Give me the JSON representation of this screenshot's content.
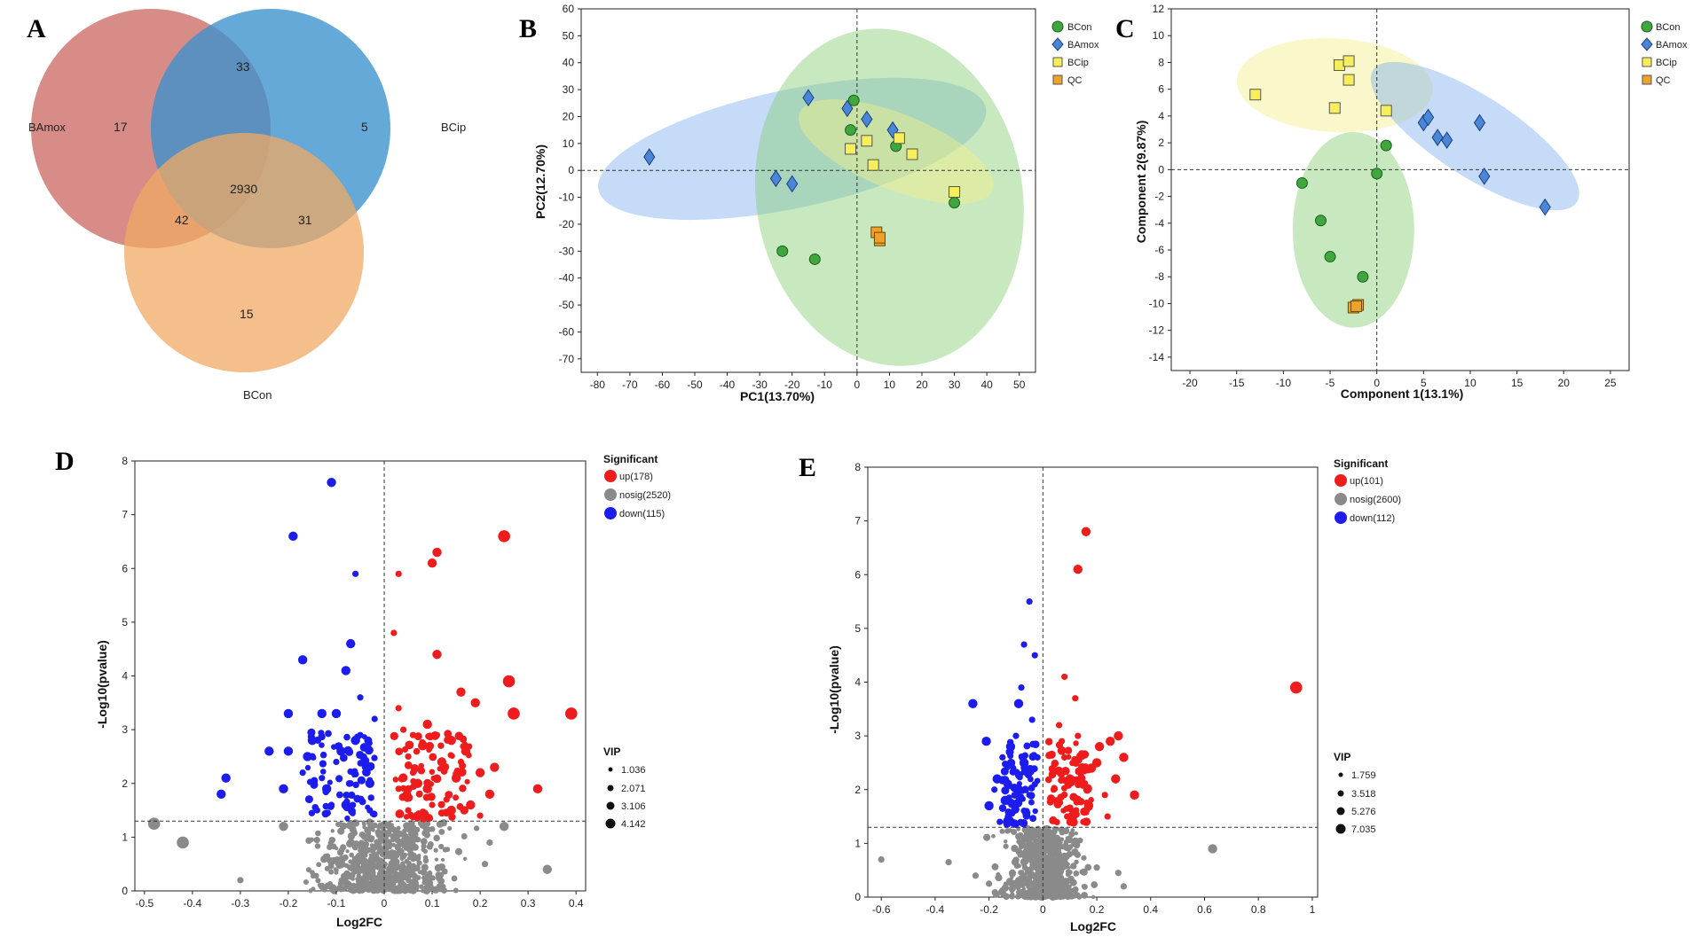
{
  "panels": {
    "A": "A",
    "B": "B",
    "C": "C",
    "D": "D",
    "E": "E"
  },
  "colors": {
    "bamox": "#cd6b65",
    "bcip": "#4a9bd2",
    "bcon": "#f0a964",
    "green": "#3ea83e",
    "blue_marker": "#4a86d8",
    "yellow_marker": "#f7ee5c",
    "orange_marker": "#f0a12c",
    "up": "#ee1c1c",
    "nosig": "#8a8a8a",
    "down": "#1c1cee"
  },
  "chart_data": [
    {
      "type": "venn",
      "sets": [
        "BAmox",
        "BCip",
        "BCon"
      ],
      "regions": {
        "BAmox_only": 17,
        "BCip_only": 5,
        "BCon_only": 15,
        "BAmox_BCip": 33,
        "BAmox_BCon": 42,
        "BCip_BCon": 31,
        "all": 2930
      }
    },
    {
      "type": "scatter",
      "xlabel": "PC1(13.70%)",
      "ylabel": "PC2(12.70%)",
      "xlim": [
        -85,
        55
      ],
      "ylim": [
        -75,
        60
      ],
      "xticks": [
        -80,
        -70,
        -60,
        -50,
        -40,
        -30,
        -20,
        -10,
        0,
        10,
        20,
        30,
        40,
        50
      ],
      "yticks": [
        60,
        50,
        40,
        30,
        20,
        10,
        0,
        -10,
        -20,
        -30,
        -40,
        -50,
        -60,
        -70
      ],
      "legend": [
        "BCon",
        "BAmox",
        "BCip",
        "QC"
      ],
      "series": [
        {
          "name": "BCon",
          "marker": "circle",
          "points": [
            [
              -1,
              26
            ],
            [
              -2,
              15
            ],
            [
              12,
              9
            ],
            [
              -23,
              -30
            ],
            [
              -13,
              -33
            ],
            [
              30,
              -12
            ]
          ]
        },
        {
          "name": "BAmox",
          "marker": "diamond",
          "points": [
            [
              -64,
              5
            ],
            [
              -15,
              27
            ],
            [
              -3,
              23
            ],
            [
              3,
              19
            ],
            [
              11,
              15
            ],
            [
              -25,
              -3
            ],
            [
              -20,
              -5
            ]
          ]
        },
        {
          "name": "BCip",
          "marker": "square",
          "points": [
            [
              -2,
              8
            ],
            [
              3,
              11
            ],
            [
              13,
              12
            ],
            [
              17,
              6
            ],
            [
              5,
              2
            ],
            [
              30,
              -8
            ]
          ]
        },
        {
          "name": "QC",
          "marker": "square",
          "points": [
            [
              6,
              -23
            ],
            [
              7,
              -26
            ],
            [
              7,
              -25
            ]
          ]
        }
      ],
      "ellipses": [
        {
          "group": "BAmox",
          "cx": -20,
          "cy": 8,
          "rx": 61,
          "ry": 22,
          "angle_deg": 12
        },
        {
          "group": "BCon",
          "cx": 10,
          "cy": -10,
          "rx": 41,
          "ry": 63,
          "angle_deg": 10
        },
        {
          "group": "BCip",
          "cx": 12,
          "cy": 7,
          "rx": 32,
          "ry": 14,
          "angle_deg": -22
        }
      ]
    },
    {
      "type": "scatter",
      "xlabel": "Component 1(13.1%)",
      "ylabel": "Component 2(9.87%)",
      "xlim": [
        -22,
        27
      ],
      "ylim": [
        -15,
        12
      ],
      "xticks": [
        -20,
        -15,
        -10,
        -5,
        0,
        5,
        10,
        15,
        20,
        25
      ],
      "yticks": [
        12,
        10,
        8,
        6,
        4,
        2,
        0,
        -2,
        -4,
        -6,
        -8,
        -10,
        -12,
        -14
      ],
      "legend": [
        "BCon",
        "BAmox",
        "BCip",
        "QC"
      ],
      "series": [
        {
          "name": "BCon",
          "marker": "circle",
          "points": [
            [
              -8,
              -1
            ],
            [
              -6,
              -3.8
            ],
            [
              -5,
              -6.5
            ],
            [
              -1.5,
              -8
            ],
            [
              1,
              1.8
            ],
            [
              0,
              -0.3
            ]
          ]
        },
        {
          "name": "BAmox",
          "marker": "diamond",
          "points": [
            [
              5,
              3.5
            ],
            [
              5.5,
              3.9
            ],
            [
              6.5,
              2.4
            ],
            [
              7.5,
              2.2
            ],
            [
              11,
              3.5
            ],
            [
              11.5,
              -0.5
            ],
            [
              18,
              -2.8
            ]
          ]
        },
        {
          "name": "BCip",
          "marker": "square",
          "points": [
            [
              -13,
              5.6
            ],
            [
              -4,
              7.8
            ],
            [
              -3,
              8.1
            ],
            [
              -3,
              6.7
            ],
            [
              -4.5,
              4.6
            ],
            [
              1,
              4.4
            ]
          ]
        },
        {
          "name": "QC",
          "marker": "square",
          "points": [
            [
              -2.5,
              -10.3
            ],
            [
              -2,
              -10.1
            ],
            [
              -2.2,
              -10.2
            ]
          ]
        }
      ],
      "ellipses": [
        {
          "group": "BCip",
          "cx": -4.5,
          "cy": 6.3,
          "rx": 10.5,
          "ry": 3.5,
          "angle_deg": -3
        },
        {
          "group": "BCon",
          "cx": -2.5,
          "cy": -4.5,
          "rx": 6.5,
          "ry": 7.3,
          "angle_deg": 0
        },
        {
          "group": "BAmox",
          "cx": 10.5,
          "cy": 2.5,
          "rx": 13,
          "ry": 3,
          "angle_deg": -33
        }
      ]
    },
    {
      "type": "scatter",
      "subtype": "volcano",
      "xlabel": "Log2FC",
      "ylabel": "-Log10(pvalue)",
      "xlim": [
        -0.52,
        0.42
      ],
      "ylim": [
        0,
        8
      ],
      "xticks": [
        -0.5,
        -0.4,
        -0.3,
        -0.2,
        -0.1,
        0,
        0.1,
        0.2,
        0.3,
        0.4
      ],
      "yticks": [
        0,
        1,
        2,
        3,
        4,
        5,
        6,
        7,
        8
      ],
      "threshold_y": 1.3,
      "legend_title": "Significant",
      "legend": [
        "up(178)",
        "nosig(2520)",
        "down(115)"
      ],
      "vip_title": "VIP",
      "vip_levels": [
        "1.036",
        "2.071",
        "3.106",
        "4.142"
      ],
      "up_points": [
        [
          0.25,
          6.6,
          3
        ],
        [
          0.11,
          6.3,
          2
        ],
        [
          0.1,
          6.1,
          2
        ],
        [
          0.03,
          5.9,
          1
        ],
        [
          0.11,
          4.4,
          2
        ],
        [
          0.02,
          4.8,
          1
        ],
        [
          0.26,
          3.9,
          3
        ],
        [
          0.16,
          3.7,
          2
        ],
        [
          0.39,
          3.3,
          3
        ],
        [
          0.27,
          3.3,
          3
        ],
        [
          0.19,
          3.5,
          2
        ],
        [
          0.32,
          1.9,
          2
        ],
        [
          0.22,
          1.8,
          2
        ],
        [
          0.2,
          2.2,
          2
        ],
        [
          0.09,
          3.1,
          2
        ],
        [
          0.14,
          2.8,
          2
        ],
        [
          0.05,
          2.5,
          1
        ],
        [
          0.07,
          2.0,
          2
        ],
        [
          0.12,
          2.4,
          2
        ],
        [
          0.17,
          2.6,
          2
        ],
        [
          0.04,
          3.0,
          1
        ],
        [
          0.06,
          2.9,
          1
        ],
        [
          0.15,
          2.1,
          2
        ],
        [
          0.1,
          1.6,
          1
        ],
        [
          0.18,
          1.6,
          2
        ],
        [
          0.08,
          2.7,
          2
        ],
        [
          0.03,
          1.9,
          1
        ],
        [
          0.05,
          1.5,
          1
        ],
        [
          0.13,
          1.7,
          1
        ],
        [
          0.09,
          1.9,
          2
        ],
        [
          0.11,
          2.9,
          1
        ],
        [
          0.03,
          3.4,
          1
        ],
        [
          0.23,
          2.3,
          2
        ],
        [
          0.14,
          1.5,
          2
        ],
        [
          0.06,
          2.2,
          1
        ],
        [
          0.2,
          1.4,
          1
        ],
        [
          0.16,
          2.4,
          1
        ]
      ],
      "down_points": [
        [
          -0.11,
          7.6,
          2
        ],
        [
          -0.19,
          6.6,
          2
        ],
        [
          -0.06,
          5.9,
          1
        ],
        [
          -0.07,
          4.6,
          2
        ],
        [
          -0.17,
          4.3,
          2
        ],
        [
          -0.08,
          4.1,
          2
        ],
        [
          -0.2,
          3.3,
          2
        ],
        [
          -0.13,
          3.3,
          2
        ],
        [
          -0.05,
          3.6,
          1
        ],
        [
          -0.1,
          3.3,
          2
        ],
        [
          -0.33,
          2.1,
          2
        ],
        [
          -0.34,
          1.8,
          2
        ],
        [
          -0.24,
          2.6,
          2
        ],
        [
          -0.2,
          2.6,
          2
        ],
        [
          -0.15,
          2.8,
          2
        ],
        [
          -0.16,
          2.5,
          2
        ],
        [
          -0.09,
          2.6,
          2
        ],
        [
          -0.06,
          2.8,
          2
        ],
        [
          -0.03,
          2.0,
          2
        ],
        [
          -0.12,
          1.9,
          2
        ],
        [
          -0.08,
          1.6,
          2
        ],
        [
          -0.17,
          2.2,
          1
        ],
        [
          -0.04,
          2.3,
          1
        ],
        [
          -0.02,
          3.2,
          1
        ],
        [
          -0.13,
          2.1,
          1
        ],
        [
          -0.07,
          2.0,
          1
        ],
        [
          -0.03,
          1.5,
          1
        ],
        [
          -0.11,
          1.6,
          1
        ],
        [
          -0.21,
          1.9,
          2
        ],
        [
          -0.05,
          2.9,
          1
        ],
        [
          -0.14,
          1.5,
          1
        ],
        [
          -0.1,
          2.4,
          1
        ]
      ],
      "nosig_outliers": [
        [
          -0.48,
          1.25,
          3
        ],
        [
          -0.42,
          0.9,
          3
        ],
        [
          0.25,
          1.2,
          2
        ],
        [
          0.34,
          0.4,
          2
        ],
        [
          -0.3,
          0.2,
          1
        ],
        [
          0.21,
          0.5,
          1
        ],
        [
          -0.21,
          1.2,
          2
        ],
        [
          0.22,
          0.9,
          1
        ]
      ]
    },
    {
      "type": "scatter",
      "subtype": "volcano",
      "xlabel": "Log2FC",
      "ylabel": "-Log10(pvalue)",
      "xlim": [
        -0.65,
        1.02
      ],
      "ylim": [
        0,
        8
      ],
      "xticks": [
        -0.6,
        -0.4,
        -0.2,
        0,
        0.2,
        0.4,
        0.6,
        0.8,
        1
      ],
      "yticks": [
        0,
        1,
        2,
        3,
        4,
        5,
        6,
        7,
        8
      ],
      "threshold_y": 1.3,
      "legend_title": "Significant",
      "legend": [
        "up(101)",
        "nosig(2600)",
        "down(112)"
      ],
      "vip_title": "VIP",
      "vip_levels": [
        "1.759",
        "3.518",
        "5.276",
        "7.035"
      ],
      "up_points": [
        [
          0.16,
          6.8,
          2
        ],
        [
          0.13,
          6.1,
          2
        ],
        [
          0.94,
          3.9,
          3
        ],
        [
          0.08,
          4.1,
          1
        ],
        [
          0.12,
          3.7,
          1
        ],
        [
          0.25,
          2.9,
          2
        ],
        [
          0.28,
          3.0,
          2
        ],
        [
          0.3,
          2.6,
          2
        ],
        [
          0.34,
          1.9,
          2
        ],
        [
          0.2,
          2.5,
          2
        ],
        [
          0.15,
          2.1,
          2
        ],
        [
          0.1,
          2.2,
          2
        ],
        [
          0.06,
          3.2,
          1
        ],
        [
          0.08,
          2.6,
          1
        ],
        [
          0.17,
          1.7,
          2
        ],
        [
          0.24,
          1.5,
          1
        ],
        [
          0.05,
          1.8,
          1
        ],
        [
          0.11,
          1.6,
          1
        ],
        [
          0.21,
          2.8,
          2
        ],
        [
          0.13,
          3.0,
          1
        ],
        [
          0.27,
          2.2,
          2
        ],
        [
          0.04,
          2.0,
          1
        ],
        [
          0.18,
          2.4,
          2
        ],
        [
          0.09,
          1.5,
          1
        ],
        [
          0.23,
          1.9,
          1
        ],
        [
          0.07,
          2.9,
          1
        ],
        [
          0.15,
          1.4,
          1
        ]
      ],
      "down_points": [
        [
          -0.05,
          5.5,
          1
        ],
        [
          -0.07,
          4.7,
          1
        ],
        [
          -0.03,
          4.5,
          1
        ],
        [
          -0.26,
          3.6,
          2
        ],
        [
          -0.09,
          3.6,
          2
        ],
        [
          -0.21,
          2.9,
          2
        ],
        [
          -0.12,
          2.8,
          2
        ],
        [
          -0.07,
          2.5,
          2
        ],
        [
          -0.17,
          2.2,
          2
        ],
        [
          -0.04,
          3.3,
          1
        ],
        [
          -0.09,
          2.0,
          2
        ],
        [
          -0.14,
          1.8,
          2
        ],
        [
          -0.2,
          1.7,
          2
        ],
        [
          -0.06,
          1.6,
          1
        ],
        [
          -0.11,
          2.4,
          1
        ],
        [
          -0.03,
          2.1,
          1
        ],
        [
          -0.15,
          2.6,
          1
        ],
        [
          -0.08,
          3.9,
          1
        ],
        [
          -0.13,
          1.5,
          1
        ],
        [
          -0.05,
          1.9,
          1
        ],
        [
          -0.18,
          2.0,
          1
        ],
        [
          -0.1,
          3.0,
          1
        ],
        [
          -0.02,
          2.6,
          1
        ],
        [
          -0.16,
          1.4,
          1
        ]
      ],
      "nosig_outliers": [
        [
          0.63,
          0.9,
          2
        ],
        [
          -0.6,
          0.7,
          1
        ],
        [
          -0.35,
          0.65,
          1
        ],
        [
          0.28,
          0.45,
          1
        ],
        [
          -0.25,
          0.4,
          1
        ],
        [
          0.2,
          0.55,
          1
        ],
        [
          -0.2,
          0.25,
          1
        ],
        [
          0.3,
          0.2,
          1
        ]
      ]
    }
  ]
}
